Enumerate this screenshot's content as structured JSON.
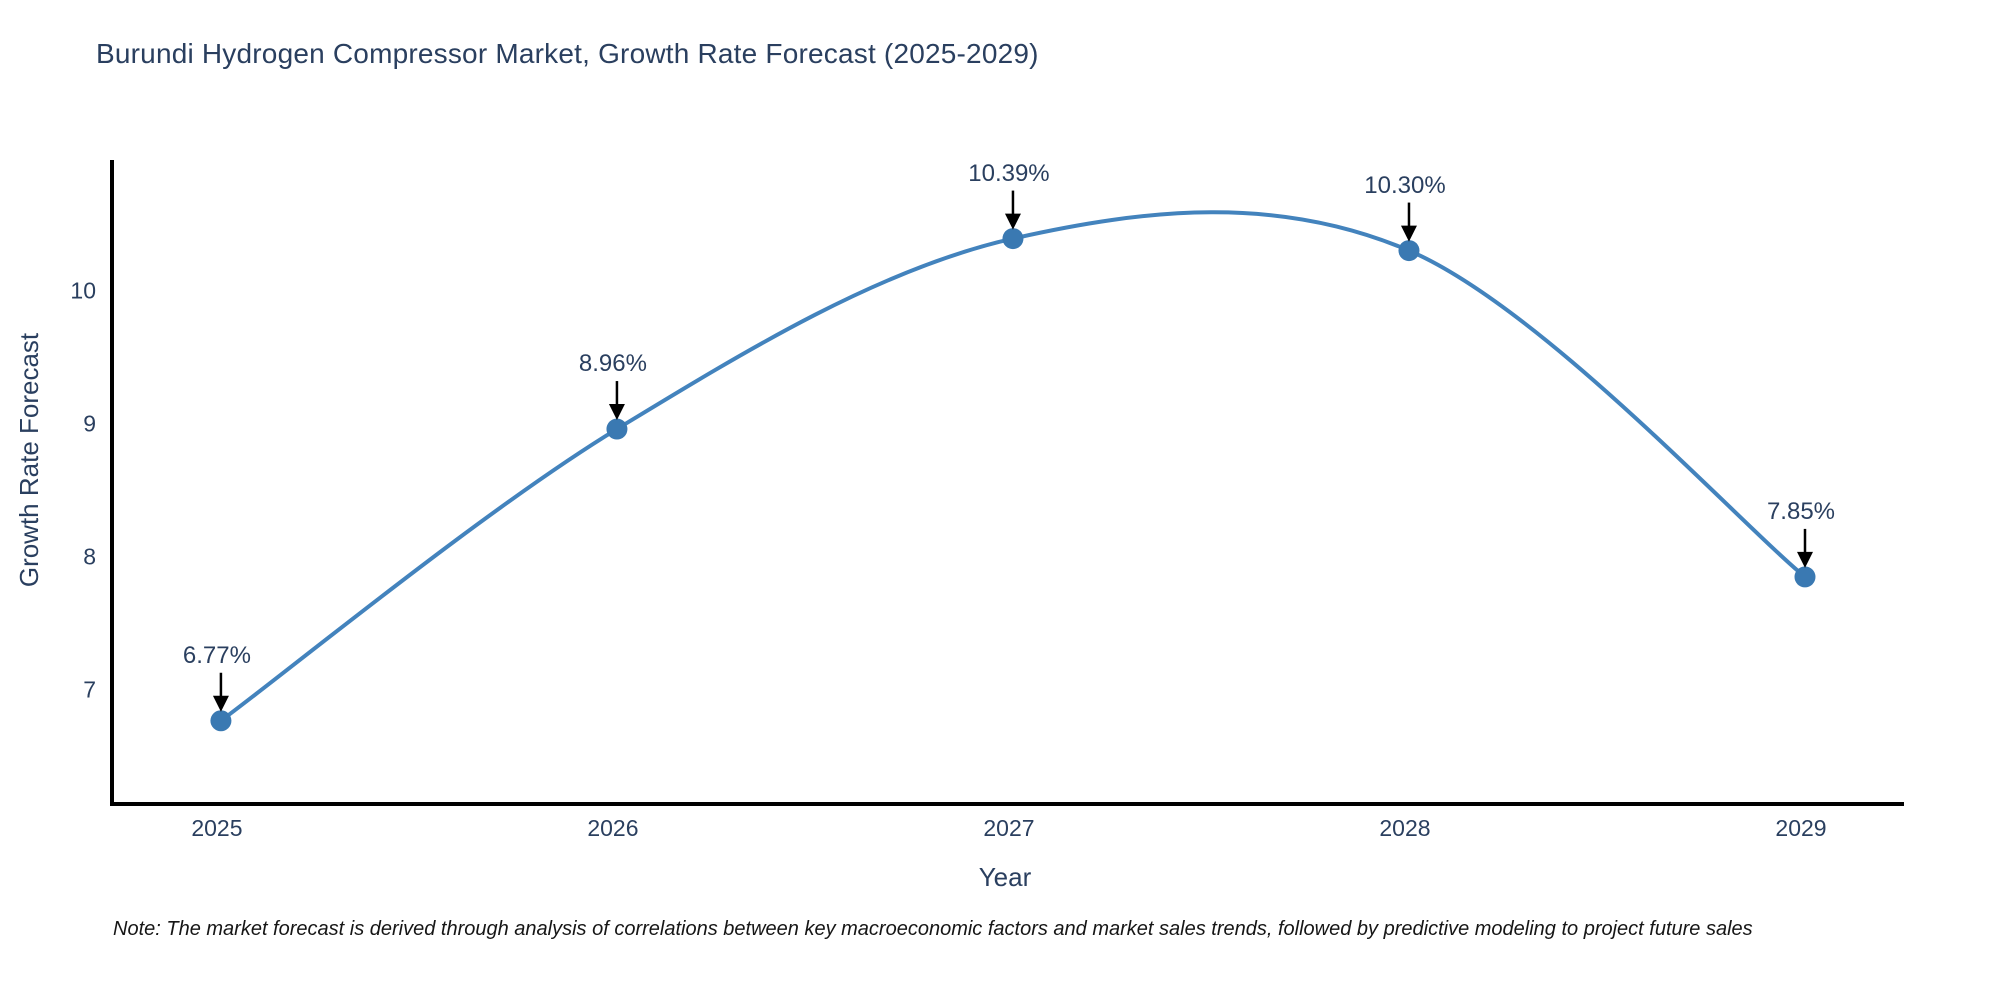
{
  "title": "Burundi Hydrogen Compressor Market, Growth Rate Forecast (2025-2029)",
  "note": "Note: The market forecast is derived through analysis of correlations between key macroeconomic factors and market sales trends, followed by predictive modeling to project future sales",
  "colors": {
    "title_text": "#2a3f5f",
    "axis_text": "#2a3f5f",
    "line": "#4383bd",
    "marker": "#3a79b2",
    "axis_line": "#000000",
    "arrow": "#000000",
    "background": "#ffffff"
  },
  "chart_data": {
    "type": "line",
    "title": "Burundi Hydrogen Compressor Market, Growth Rate Forecast (2025-2029)",
    "xlabel": "Year",
    "ylabel": "Growth Rate Forecast",
    "x": [
      2025,
      2026,
      2027,
      2028,
      2029
    ],
    "y": [
      6.77,
      8.96,
      10.39,
      10.3,
      7.85
    ],
    "point_labels": [
      "6.77%",
      "8.96%",
      "10.39%",
      "10.30%",
      "7.85%"
    ],
    "xticks": [
      "2025",
      "2026",
      "2027",
      "2028",
      "2029"
    ],
    "xtick_values": [
      2025,
      2026,
      2027,
      2028,
      2029
    ],
    "yticks": [
      "7",
      "8",
      "9",
      "10"
    ],
    "ytick_values": [
      7,
      8,
      9,
      10
    ],
    "xlim": [
      2024.73,
      2029.25
    ],
    "ylim": [
      6.16,
      10.98
    ],
    "line_shape": "spline",
    "markers": true,
    "grid": false,
    "legend": "none",
    "annotation_arrows": true
  }
}
